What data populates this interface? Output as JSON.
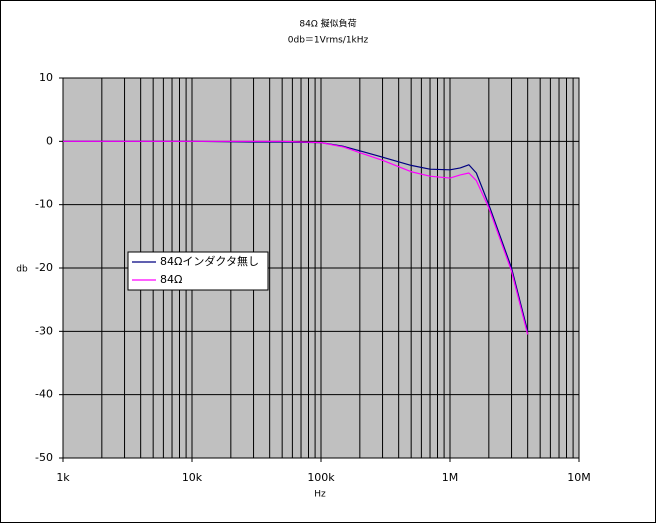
{
  "chart_data": {
    "type": "line",
    "title": "84Ω 擬似負荷",
    "subtitle": "0db＝1Vrms/1kHz",
    "x_label": "Hz",
    "y_label": "db",
    "xscale": "log",
    "xlim": [
      1000,
      10000000
    ],
    "xticks": [
      {
        "value": 1000,
        "label": "1k"
      },
      {
        "value": 10000,
        "label": "10k"
      },
      {
        "value": 100000,
        "label": "100k"
      },
      {
        "value": 1000000,
        "label": "1M"
      },
      {
        "value": 10000000,
        "label": "10M"
      }
    ],
    "xminorticks": [
      2000,
      3000,
      4000,
      5000,
      6000,
      7000,
      8000,
      9000,
      20000,
      30000,
      40000,
      50000,
      60000,
      70000,
      80000,
      90000,
      200000,
      300000,
      400000,
      500000,
      600000,
      700000,
      800000,
      900000,
      2000000,
      3000000,
      4000000,
      5000000,
      6000000,
      7000000,
      8000000,
      9000000
    ],
    "ylim": [
      -50,
      10
    ],
    "yticks": [
      10,
      0,
      -10,
      -20,
      -30,
      -40,
      -50
    ],
    "grid": true,
    "legend": "left",
    "x": [
      1000,
      10000,
      30000,
      50000,
      100000,
      150000,
      200000,
      300000,
      500000,
      700000,
      1000000,
      1200000,
      1400000,
      1600000,
      2000000,
      3000000,
      4000000
    ],
    "series": [
      {
        "name": "84Ωインダクタ無し",
        "color": "#000080",
        "values": [
          0,
          0,
          -0.1,
          -0.1,
          -0.2,
          -0.8,
          -1.5,
          -2.5,
          -3.8,
          -4.4,
          -4.5,
          -4.2,
          -3.7,
          -5,
          -10,
          -20,
          -30
        ]
      },
      {
        "name": "84Ω",
        "color": "#ff00ff",
        "values": [
          0,
          0,
          0,
          0,
          -0.2,
          -0.9,
          -1.8,
          -3,
          -4.8,
          -5.5,
          -5.8,
          -5.3,
          -5,
          -6.2,
          -10.5,
          -20.5,
          -30.5
        ]
      }
    ]
  }
}
